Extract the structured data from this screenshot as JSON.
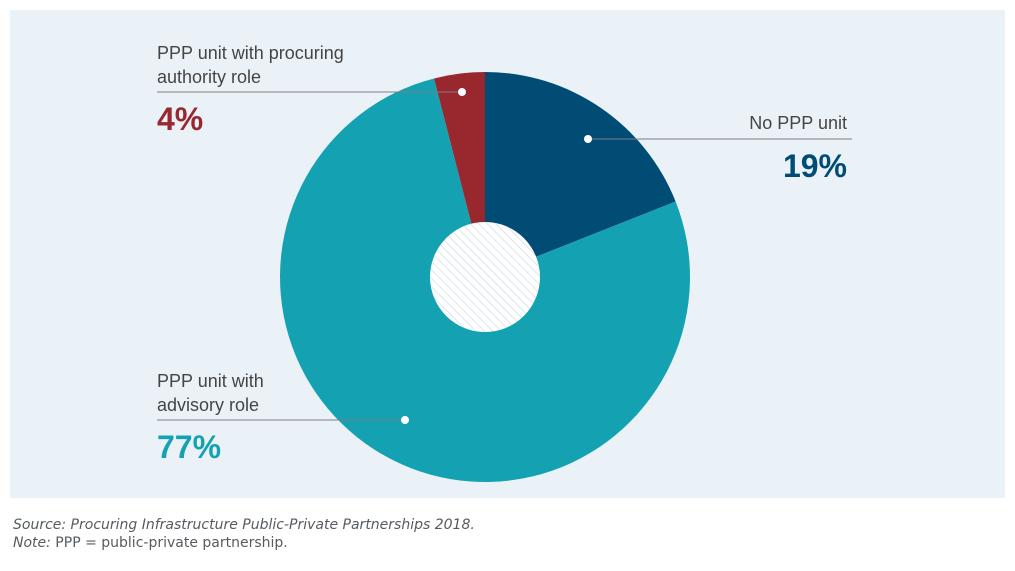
{
  "chart_data": {
    "type": "pie",
    "slices": [
      {
        "label": "No PPP unit",
        "value": 19,
        "display": "19%",
        "color": "#004c75"
      },
      {
        "label": "PPP unit with advisory role",
        "value": 77,
        "display": "77%",
        "color": "#14a2b3"
      },
      {
        "label": "PPP unit with procuring authority role",
        "value": 4,
        "display": "4%",
        "color": "#98282e"
      }
    ],
    "labels": {
      "no_unit": {
        "lines": [
          "No PPP unit"
        ],
        "pct": "19%"
      },
      "advisory": {
        "lines": [
          "PPP unit with",
          "advisory role"
        ],
        "pct": "77%"
      },
      "procuring": {
        "lines": [
          "PPP unit with procuring",
          "authority role"
        ],
        "pct": "4%"
      }
    },
    "center_hole": "hatched",
    "background_color": "#eaf2f7",
    "label_text_color": "#454545"
  },
  "footer": {
    "source": "Source: Procuring Infrastructure Public-Private Partnerships 2018.",
    "note_label": "Note:",
    "note_text": " PPP = public-private partnership."
  }
}
